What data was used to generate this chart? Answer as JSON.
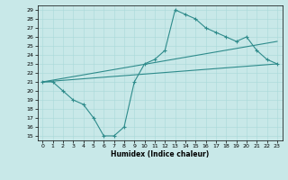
{
  "xlabel": "Humidex (Indice chaleur)",
  "bg_color": "#c8e8e8",
  "line_color": "#2e8b8b",
  "grid_color": "#a8d8d8",
  "xlim": [
    -0.5,
    23.5
  ],
  "ylim": [
    14.5,
    29.5
  ],
  "xticks": [
    0,
    1,
    2,
    3,
    4,
    5,
    6,
    7,
    8,
    9,
    10,
    11,
    12,
    13,
    14,
    15,
    16,
    17,
    18,
    19,
    20,
    21,
    22,
    23
  ],
  "yticks": [
    15,
    16,
    17,
    18,
    19,
    20,
    21,
    22,
    23,
    24,
    25,
    26,
    27,
    28,
    29
  ],
  "line1_x": [
    0,
    1,
    2,
    3,
    4,
    5,
    6,
    7,
    8,
    9,
    10,
    11,
    12,
    13,
    14,
    15,
    16,
    17,
    18,
    19,
    20,
    21,
    22,
    23
  ],
  "line1_y": [
    21,
    21,
    20,
    19,
    18.5,
    17,
    15,
    15,
    16,
    21,
    23,
    23.5,
    24.5,
    29,
    28.5,
    28,
    27,
    26.5,
    26,
    25.5,
    26,
    24.5,
    23.5,
    23
  ],
  "line2_x": [
    0,
    23
  ],
  "line2_y": [
    21,
    25.5
  ],
  "line3_x": [
    0,
    23
  ],
  "line3_y": [
    21,
    23
  ],
  "linewidth": 0.8,
  "markersize": 3.5,
  "tick_labelsize": 4.5,
  "xlabel_fontsize": 5.5
}
